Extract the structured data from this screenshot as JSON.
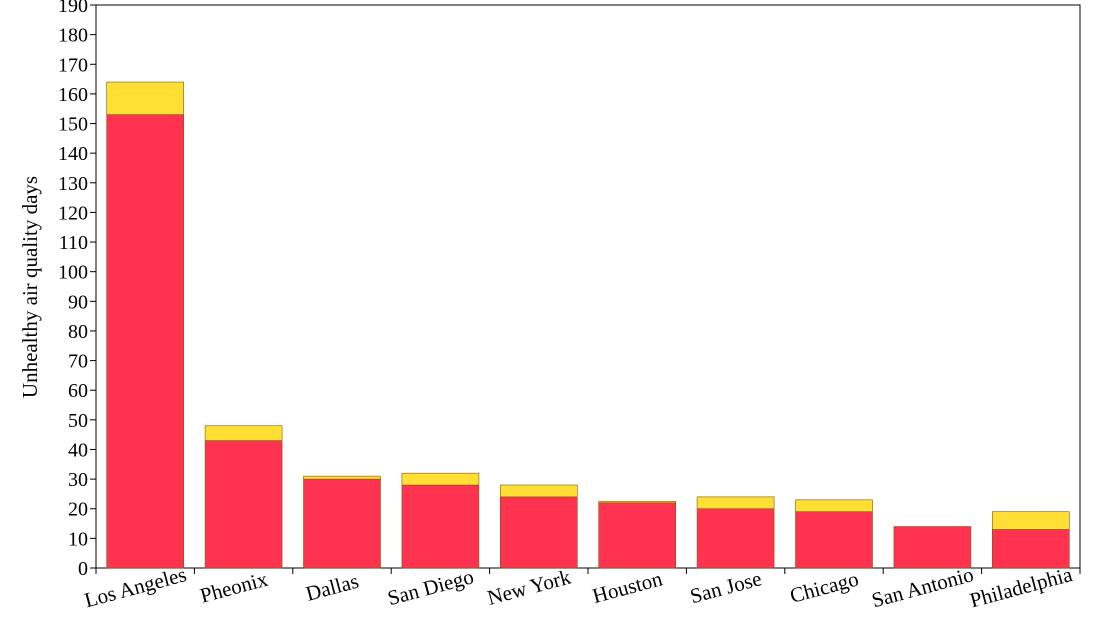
{
  "chart_data": {
    "type": "bar",
    "stacked": true,
    "title": "",
    "xlabel": "",
    "ylabel": "Unhealthy air quality days",
    "ylim": [
      0,
      190
    ],
    "ytick_step": 10,
    "grid": false,
    "categories": [
      "Los Angeles",
      "Pheonix",
      "Dallas",
      "San Diego",
      "New York",
      "Houston",
      "San Jose",
      "Chicago",
      "San Antonio",
      "Philadelphia"
    ],
    "series": [
      {
        "color": "#ff334f",
        "values": [
          153,
          43,
          30,
          28,
          24,
          22,
          20,
          19,
          14,
          13
        ]
      },
      {
        "color": "#ffdf33",
        "values": [
          11,
          5,
          1,
          4,
          4,
          0.5,
          4,
          4,
          0,
          6
        ]
      }
    ]
  }
}
